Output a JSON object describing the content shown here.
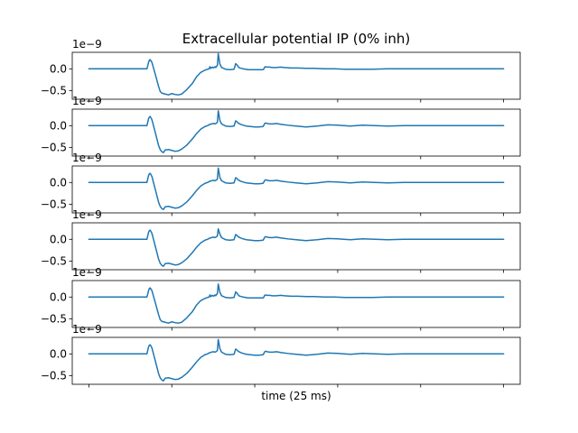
{
  "chart_data": {
    "type": "line",
    "title": "Extracellular potential IP (0% inh)",
    "xlabel": "time (25 ms)",
    "ylabel": "",
    "grid": false,
    "legend": "none",
    "series_color": "#1f77b4",
    "x_tick_labels_shown": false,
    "xlim": [
      -20,
      520
    ],
    "ylim": [
      -0.7,
      0.38
    ],
    "y_offset_label": "1e−9",
    "y_ticks": [
      {
        "value": 0.0,
        "label": "0.0"
      },
      {
        "value": -0.5,
        "label": "−0.5"
      }
    ],
    "panels": [
      {
        "name": "trace-1",
        "x": [
          0,
          70,
          71,
          72,
          73,
          74,
          76,
          80,
          84,
          86,
          88,
          92,
          96,
          100,
          104,
          108,
          112,
          118,
          125,
          130,
          135,
          140,
          143,
          145,
          146,
          147,
          148,
          149,
          150,
          151,
          152,
          153,
          154,
          155,
          156,
          158,
          160,
          165,
          170,
          175,
          176,
          177,
          178,
          179,
          180,
          181,
          182,
          184,
          186,
          189,
          192,
          196,
          200,
          205,
          210,
          211,
          212,
          213,
          214,
          215,
          218,
          221,
          226,
          231,
          236,
          244,
          252,
          262,
          272,
          284,
          296,
          310,
          326,
          342,
          360,
          378,
          396,
          420,
          450,
          480,
          500
        ],
        "y": [
          0.0,
          0.0,
          0.07,
          0.15,
          0.2,
          0.21,
          0.15,
          -0.12,
          -0.4,
          -0.52,
          -0.56,
          -0.58,
          -0.6,
          -0.57,
          -0.59,
          -0.6,
          -0.58,
          -0.48,
          -0.33,
          -0.18,
          -0.08,
          -0.03,
          -0.01,
          0.0,
          0.05,
          0.01,
          0.03,
          0.04,
          0.02,
          0.03,
          0.05,
          0.03,
          0.06,
          0.08,
          0.35,
          0.11,
          0.03,
          -0.01,
          -0.02,
          -0.01,
          0.05,
          0.12,
          0.1,
          0.08,
          0.05,
          0.03,
          0.02,
          0.01,
          0.0,
          -0.01,
          -0.02,
          -0.02,
          -0.02,
          -0.02,
          -0.02,
          0.0,
          0.04,
          0.05,
          0.04,
          0.04,
          0.04,
          0.03,
          0.03,
          0.04,
          0.03,
          0.02,
          0.02,
          0.01,
          0.01,
          0.0,
          0.0,
          -0.01,
          -0.01,
          -0.01,
          0.0,
          0.0,
          0.0,
          0.0,
          0.0,
          0.0,
          0.0
        ]
      },
      {
        "name": "trace-2",
        "x": [
          0,
          70,
          71,
          72,
          73,
          74,
          76,
          80,
          84,
          86,
          88,
          90,
          92,
          96,
          100,
          104,
          108,
          112,
          118,
          125,
          130,
          135,
          140,
          143,
          145,
          146,
          148,
          150,
          152,
          154,
          155,
          156,
          158,
          160,
          165,
          170,
          175,
          176,
          177,
          178,
          180,
          183,
          186,
          190,
          195,
          200,
          205,
          210,
          211,
          212,
          213,
          215,
          218,
          222,
          226,
          232,
          240,
          250,
          262,
          275,
          288,
          300,
          315,
          330,
          345,
          360,
          380,
          400,
          430,
          460,
          500
        ],
        "y": [
          0.0,
          0.0,
          0.08,
          0.16,
          0.2,
          0.21,
          0.14,
          -0.15,
          -0.45,
          -0.55,
          -0.6,
          -0.62,
          -0.56,
          -0.55,
          -0.57,
          -0.59,
          -0.58,
          -0.54,
          -0.45,
          -0.3,
          -0.18,
          -0.08,
          -0.02,
          0.0,
          0.02,
          0.03,
          0.04,
          0.05,
          0.04,
          0.06,
          0.08,
          0.34,
          0.12,
          0.04,
          -0.01,
          -0.02,
          -0.01,
          0.05,
          0.11,
          0.1,
          0.06,
          0.03,
          0.01,
          -0.01,
          -0.02,
          -0.03,
          -0.03,
          -0.02,
          0.01,
          0.05,
          0.06,
          0.05,
          0.04,
          0.04,
          0.05,
          0.03,
          0.01,
          -0.01,
          -0.03,
          -0.01,
          0.02,
          0.01,
          -0.01,
          0.01,
          0.0,
          -0.01,
          0.0,
          0.0,
          0.0,
          0.0,
          0.0
        ]
      },
      {
        "name": "trace-3",
        "x": [
          0,
          70,
          71,
          72,
          73,
          74,
          76,
          80,
          84,
          86,
          88,
          90,
          92,
          96,
          100,
          104,
          108,
          112,
          118,
          125,
          130,
          135,
          140,
          143,
          145,
          146,
          148,
          150,
          152,
          154,
          155,
          156,
          158,
          160,
          165,
          170,
          175,
          176,
          177,
          178,
          180,
          183,
          186,
          190,
          195,
          200,
          205,
          210,
          211,
          212,
          213,
          215,
          218,
          222,
          226,
          232,
          240,
          250,
          262,
          275,
          288,
          300,
          315,
          330,
          345,
          360,
          380,
          400,
          430,
          460,
          500
        ],
        "y": [
          0.0,
          0.0,
          0.08,
          0.16,
          0.2,
          0.21,
          0.14,
          -0.15,
          -0.45,
          -0.55,
          -0.6,
          -0.62,
          -0.56,
          -0.55,
          -0.57,
          -0.59,
          -0.58,
          -0.54,
          -0.45,
          -0.3,
          -0.18,
          -0.08,
          -0.02,
          0.0,
          0.02,
          0.03,
          0.04,
          0.05,
          0.04,
          0.06,
          0.08,
          0.33,
          0.12,
          0.04,
          -0.01,
          -0.02,
          -0.01,
          0.05,
          0.11,
          0.1,
          0.06,
          0.03,
          0.01,
          -0.01,
          -0.02,
          -0.03,
          -0.03,
          -0.02,
          0.01,
          0.05,
          0.06,
          0.05,
          0.04,
          0.04,
          0.05,
          0.03,
          0.01,
          -0.01,
          -0.03,
          -0.01,
          0.02,
          0.01,
          -0.01,
          0.01,
          0.0,
          -0.01,
          0.0,
          0.0,
          0.0,
          0.0,
          0.0
        ]
      },
      {
        "name": "trace-4",
        "x": [
          0,
          70,
          71,
          72,
          73,
          74,
          76,
          80,
          84,
          86,
          88,
          90,
          92,
          96,
          100,
          104,
          108,
          112,
          118,
          125,
          130,
          135,
          140,
          143,
          145,
          146,
          148,
          150,
          152,
          154,
          155,
          156,
          158,
          160,
          165,
          170,
          175,
          176,
          177,
          178,
          180,
          183,
          186,
          190,
          195,
          200,
          205,
          210,
          211,
          212,
          213,
          215,
          218,
          222,
          226,
          232,
          240,
          250,
          262,
          275,
          288,
          300,
          315,
          330,
          345,
          360,
          380,
          400,
          430,
          460,
          500
        ],
        "y": [
          0.0,
          0.0,
          0.08,
          0.16,
          0.2,
          0.21,
          0.14,
          -0.15,
          -0.45,
          -0.55,
          -0.6,
          -0.62,
          -0.56,
          -0.55,
          -0.57,
          -0.59,
          -0.58,
          -0.54,
          -0.45,
          -0.3,
          -0.18,
          -0.08,
          -0.02,
          0.0,
          0.02,
          0.03,
          0.04,
          0.05,
          0.04,
          0.06,
          0.08,
          0.24,
          0.12,
          0.04,
          -0.01,
          -0.02,
          -0.01,
          0.05,
          0.11,
          0.1,
          0.06,
          0.03,
          0.01,
          -0.01,
          -0.02,
          -0.03,
          -0.03,
          -0.02,
          0.01,
          0.05,
          0.06,
          0.05,
          0.04,
          0.04,
          0.05,
          0.03,
          0.01,
          -0.01,
          -0.03,
          -0.01,
          0.02,
          0.01,
          -0.01,
          0.01,
          0.0,
          -0.01,
          0.0,
          0.0,
          0.0,
          0.0,
          0.0
        ]
      },
      {
        "name": "trace-5",
        "x": [
          0,
          70,
          71,
          72,
          73,
          74,
          76,
          80,
          84,
          86,
          88,
          92,
          96,
          100,
          104,
          108,
          112,
          118,
          125,
          130,
          135,
          140,
          143,
          145,
          146,
          147,
          148,
          149,
          150,
          151,
          152,
          153,
          154,
          155,
          156,
          158,
          160,
          165,
          170,
          175,
          176,
          177,
          178,
          179,
          180,
          181,
          182,
          184,
          186,
          189,
          192,
          196,
          200,
          205,
          210,
          211,
          212,
          213,
          214,
          215,
          218,
          221,
          226,
          231,
          236,
          244,
          252,
          262,
          272,
          284,
          296,
          310,
          326,
          342,
          360,
          378,
          396,
          420,
          450,
          480,
          500
        ],
        "y": [
          0.0,
          0.0,
          0.07,
          0.15,
          0.2,
          0.21,
          0.15,
          -0.12,
          -0.4,
          -0.52,
          -0.56,
          -0.58,
          -0.6,
          -0.57,
          -0.59,
          -0.6,
          -0.58,
          -0.48,
          -0.33,
          -0.18,
          -0.08,
          -0.03,
          -0.01,
          0.0,
          0.05,
          0.01,
          0.03,
          0.04,
          0.02,
          0.03,
          0.05,
          0.03,
          0.06,
          0.08,
          0.3,
          0.11,
          0.03,
          -0.01,
          -0.02,
          -0.01,
          0.05,
          0.12,
          0.1,
          0.08,
          0.05,
          0.03,
          0.02,
          0.01,
          0.0,
          -0.01,
          -0.02,
          -0.02,
          -0.02,
          -0.02,
          -0.02,
          0.0,
          0.04,
          0.05,
          0.04,
          0.04,
          0.04,
          0.03,
          0.03,
          0.04,
          0.03,
          0.02,
          0.02,
          0.01,
          0.01,
          0.0,
          0.0,
          -0.01,
          -0.01,
          -0.01,
          0.0,
          0.0,
          0.0,
          0.0,
          0.0,
          0.0,
          0.0
        ]
      },
      {
        "name": "trace-6",
        "x": [
          0,
          70,
          71,
          72,
          73,
          74,
          76,
          80,
          84,
          86,
          88,
          90,
          92,
          96,
          100,
          104,
          108,
          112,
          118,
          125,
          130,
          135,
          140,
          143,
          145,
          146,
          148,
          150,
          152,
          154,
          155,
          156,
          158,
          160,
          165,
          170,
          175,
          176,
          177,
          178,
          180,
          183,
          186,
          190,
          195,
          200,
          205,
          210,
          211,
          212,
          213,
          215,
          218,
          222,
          226,
          232,
          240,
          250,
          262,
          275,
          288,
          300,
          315,
          330,
          345,
          360,
          380,
          400,
          430,
          460,
          500
        ],
        "y": [
          0.0,
          0.0,
          0.08,
          0.16,
          0.2,
          0.21,
          0.14,
          -0.15,
          -0.45,
          -0.55,
          -0.6,
          -0.62,
          -0.56,
          -0.55,
          -0.57,
          -0.59,
          -0.58,
          -0.54,
          -0.45,
          -0.3,
          -0.18,
          -0.08,
          -0.02,
          0.0,
          0.02,
          0.03,
          0.04,
          0.05,
          0.04,
          0.06,
          0.08,
          0.33,
          0.12,
          0.04,
          -0.01,
          -0.02,
          -0.01,
          0.05,
          0.11,
          0.1,
          0.06,
          0.03,
          0.01,
          -0.01,
          -0.02,
          -0.03,
          -0.03,
          -0.02,
          0.01,
          0.05,
          0.06,
          0.05,
          0.04,
          0.04,
          0.05,
          0.03,
          0.01,
          -0.01,
          -0.03,
          -0.01,
          0.02,
          0.01,
          -0.01,
          0.01,
          0.0,
          -0.01,
          0.0,
          0.0,
          0.0,
          0.0,
          0.0
        ]
      }
    ]
  }
}
